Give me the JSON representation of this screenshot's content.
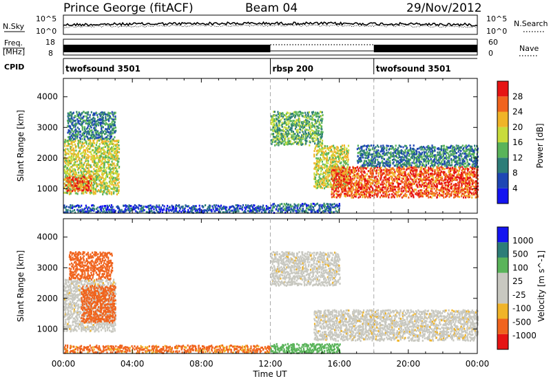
{
  "header": {
    "station": "Prince George (fitACF)",
    "beam": "Beam 04",
    "date": "29/Nov/2012"
  },
  "panels": {
    "noise": {
      "left_label": "N.Sky",
      "right_label": "N.Search",
      "left_ticks": [
        "10^5",
        "10^0"
      ],
      "right_ticks": [
        "10^5",
        "10^0"
      ]
    },
    "freq": {
      "left_label_top": "Freq.",
      "left_label_bottom": "[MHz]",
      "left_ticks": [
        "18",
        "8"
      ],
      "right_label": "Nave",
      "right_ticks": [
        "60",
        "0"
      ]
    },
    "cpid": {
      "label": "CPID",
      "programs": [
        {
          "name": "twofsound 3501",
          "start_hour": 0,
          "end_hour": 12
        },
        {
          "name": "rbsp 200",
          "start_hour": 12,
          "end_hour": 18
        },
        {
          "name": "twofsound 3501",
          "start_hour": 18,
          "end_hour": 24
        }
      ]
    }
  },
  "chart_data": [
    {
      "type": "heatmap",
      "title": "",
      "xlabel": "Time UT",
      "ylabel": "Slant Range [km]",
      "x_range_hours": [
        0,
        24
      ],
      "xticks": [
        "00:00",
        "04:00",
        "08:00",
        "12:00",
        "16:00",
        "20:00",
        "00:00"
      ],
      "ylim": [
        200,
        4600
      ],
      "yticks": [
        "1000",
        "2000",
        "3000",
        "4000"
      ],
      "colorbar_label": "Power [dB]",
      "colorbar_ticks": [
        "28",
        "24",
        "20",
        "16",
        "12",
        "8",
        "4"
      ],
      "colorbar_range": [
        0,
        32
      ],
      "colors": [
        "#1414f0",
        "#1e46b4",
        "#2d7d78",
        "#5ab45a",
        "#c8dc3c",
        "#f0b428",
        "#f0641e",
        "#e61414"
      ],
      "regions": [
        {
          "t0": 0.0,
          "t1": 3.2,
          "r0": 800,
          "r1": 2600,
          "value": 18
        },
        {
          "t0": 0.1,
          "t1": 1.6,
          "r0": 900,
          "r1": 1400,
          "value": 28
        },
        {
          "t0": 0.2,
          "t1": 3.0,
          "r0": 2600,
          "r1": 3500,
          "value": 10
        },
        {
          "t0": 0.0,
          "t1": 12.0,
          "r0": 200,
          "r1": 450,
          "value": 6
        },
        {
          "t0": 12.0,
          "t1": 15.0,
          "r0": 2400,
          "r1": 3500,
          "value": 14
        },
        {
          "t0": 14.5,
          "t1": 16.5,
          "r0": 1000,
          "r1": 2400,
          "value": 18
        },
        {
          "t0": 15.5,
          "t1": 24.0,
          "r0": 700,
          "r1": 1700,
          "value": 27
        },
        {
          "t0": 17.0,
          "t1": 24.0,
          "r0": 1700,
          "r1": 2400,
          "value": 10
        },
        {
          "t0": 12.0,
          "t1": 16.0,
          "r0": 200,
          "r1": 500,
          "value": 8
        }
      ]
    },
    {
      "type": "heatmap",
      "title": "",
      "xlabel": "Time UT",
      "ylabel": "Slant Range [km]",
      "x_range_hours": [
        0,
        24
      ],
      "xticks": [
        "00:00",
        "04:00",
        "08:00",
        "12:00",
        "16:00",
        "20:00",
        "00:00"
      ],
      "ylim": [
        200,
        4600
      ],
      "yticks": [
        "1000",
        "2000",
        "3000",
        "4000"
      ],
      "colorbar_label": "Velocity [m s^-1]",
      "colorbar_ticks": [
        "1000",
        "500",
        "100",
        "25",
        "-25",
        "-100",
        "-500",
        "-1000"
      ],
      "colors": [
        "#e61414",
        "#f0641e",
        "#f0b428",
        "#c8c8c0",
        "#c8c8c0",
        "#5ab45a",
        "#2d7d78",
        "#1414f0"
      ],
      "regions": [
        {
          "t0": 0.0,
          "t1": 3.0,
          "r0": 900,
          "r1": 2600,
          "value": 0
        },
        {
          "t0": 1.0,
          "t1": 3.0,
          "r0": 1200,
          "r1": 2400,
          "value": -150
        },
        {
          "t0": 0.3,
          "t1": 2.8,
          "r0": 2600,
          "r1": 3500,
          "value": -300
        },
        {
          "t0": 0.0,
          "t1": 12.0,
          "r0": 200,
          "r1": 450,
          "value": -120
        },
        {
          "t0": 12.0,
          "t1": 16.0,
          "r0": 2400,
          "r1": 3500,
          "value": 0
        },
        {
          "t0": 14.5,
          "t1": 24.0,
          "r0": 600,
          "r1": 1600,
          "value": 0
        },
        {
          "t0": 12.0,
          "t1": 16.0,
          "r0": 200,
          "r1": 500,
          "value": 150
        }
      ]
    }
  ]
}
